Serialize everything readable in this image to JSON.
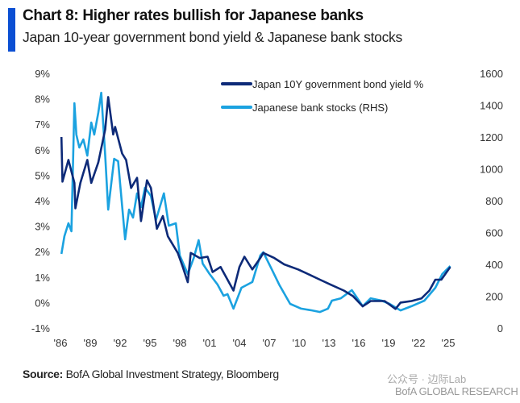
{
  "header": {
    "title": "Chart 8: Higher rates bullish for Japanese banks",
    "subtitle": "Japan 10-year government bond yield & Japanese bank stocks"
  },
  "footer": {
    "source_label": "Source:",
    "source_text": "BofA Global Investment Strategy, Bloomberg",
    "watermark_wechat": "公众号 · 边际Lab",
    "watermark_logo": "BofA GLOBAL RESEARCH"
  },
  "chart_data": {
    "type": "line",
    "title": "Chart 8: Higher rates bullish for Japanese banks",
    "subtitle": "Japan 10-year government bond yield & Japanese bank stocks",
    "legend_placement": "top-center",
    "grid": false,
    "x_ticks": [
      "'86",
      "'89",
      "'92",
      "'95",
      "'98",
      "'01",
      "'04",
      "'07",
      "'10",
      "'13",
      "'16",
      "'19",
      "'22",
      "'25"
    ],
    "xlim": [
      1986,
      2025
    ],
    "y_left": {
      "ticks": [
        "9%",
        "8%",
        "7%",
        "6%",
        "5%",
        "4%",
        "3%",
        "2%",
        "1%",
        "0%",
        "-1%"
      ],
      "ylim": [
        -1,
        9
      ]
    },
    "y_right": {
      "ticks": [
        "1600",
        "1400",
        "1200",
        "1000",
        "800",
        "600",
        "400",
        "200",
        "0"
      ],
      "ylim": [
        0,
        1600
      ]
    },
    "colors": {
      "yield": "#0d2a78",
      "stocks": "#1ba2e0",
      "accent_bar": "#0b4fd3"
    },
    "series": [
      {
        "name": "Japan 10Y government bond yield %",
        "axis": "left",
        "x": [
          1986.1,
          1986.2,
          1986.8,
          1987.4,
          1987.5,
          1988.0,
          1988.7,
          1989.1,
          1989.8,
          1990.5,
          1990.8,
          1991.3,
          1991.5,
          1992.2,
          1992.6,
          1993.1,
          1993.7,
          1994.1,
          1994.7,
          1995.1,
          1995.7,
          1996.3,
          1996.8,
          1997.8,
          1998.3,
          1998.8,
          1999.1,
          2000.0,
          2000.8,
          2001.3,
          2002.1,
          2003.4,
          2004.0,
          2004.5,
          2005.3,
          2006.1,
          2006.4,
          2007.5,
          2008.5,
          2009.9,
          2011.0,
          2012.1,
          2013.2,
          2014.5,
          2015.4,
          2016.4,
          2017.2,
          2018.6,
          2019.7,
          2020.2,
          2021.3,
          2022.3,
          2023.1,
          2023.7,
          2024.3,
          2025.2
        ],
        "y": [
          6.5,
          4.75,
          5.6,
          4.7,
          3.7,
          4.7,
          5.6,
          4.7,
          5.5,
          6.8,
          8.07,
          6.6,
          6.9,
          5.85,
          5.6,
          4.5,
          4.9,
          3.2,
          4.8,
          4.5,
          2.9,
          3.4,
          2.6,
          1.95,
          1.4,
          0.8,
          1.95,
          1.75,
          1.8,
          1.2,
          1.4,
          0.47,
          1.4,
          1.8,
          1.3,
          1.75,
          1.95,
          1.75,
          1.5,
          1.3,
          1.1,
          0.9,
          0.7,
          0.47,
          0.26,
          -0.15,
          0.06,
          0.06,
          -0.25,
          0.0,
          0.06,
          0.16,
          0.47,
          0.9,
          0.9,
          1.4
        ]
      },
      {
        "name": "Japanese bank stocks (RHS)",
        "axis": "right",
        "x": [
          1986.1,
          1986.4,
          1986.8,
          1987.1,
          1987.4,
          1987.6,
          1987.9,
          1988.3,
          1988.7,
          1989.1,
          1989.4,
          1989.8,
          1990.1,
          1990.5,
          1990.8,
          1991.4,
          1991.8,
          1992.5,
          1992.9,
          1993.3,
          1993.7,
          1994.1,
          1994.5,
          1995.1,
          1995.6,
          1996.4,
          1996.9,
          1997.6,
          1998.0,
          1998.8,
          1999.4,
          1999.9,
          2000.3,
          2001.0,
          2001.8,
          2002.4,
          2002.8,
          2003.4,
          2004.2,
          2005.3,
          2006.1,
          2006.4,
          2007.2,
          2008.0,
          2009.1,
          2010.2,
          2011.3,
          2012.1,
          2012.9,
          2013.3,
          2014.2,
          2015.3,
          2016.4,
          2017.2,
          2018.3,
          2019.1,
          2020.2,
          2021.3,
          2022.6,
          2023.7,
          2024.4,
          2025.2
        ],
        "y": [
          466,
          577,
          658,
          608,
          1412,
          1215,
          1134,
          1185,
          1083,
          1291,
          1215,
          1352,
          1478,
          1083,
          744,
          1063,
          1048,
          557,
          744,
          694,
          846,
          759,
          881,
          830,
          678,
          846,
          643,
          658,
          456,
          339,
          440,
          552,
          405,
          339,
          273,
          203,
          213,
          122,
          253,
          289,
          456,
          476,
          375,
          273,
          152,
          122,
          111,
          101,
          122,
          172,
          187,
          238,
          137,
          187,
          172,
          152,
          111,
          137,
          172,
          253,
          339,
          390
        ]
      }
    ]
  }
}
